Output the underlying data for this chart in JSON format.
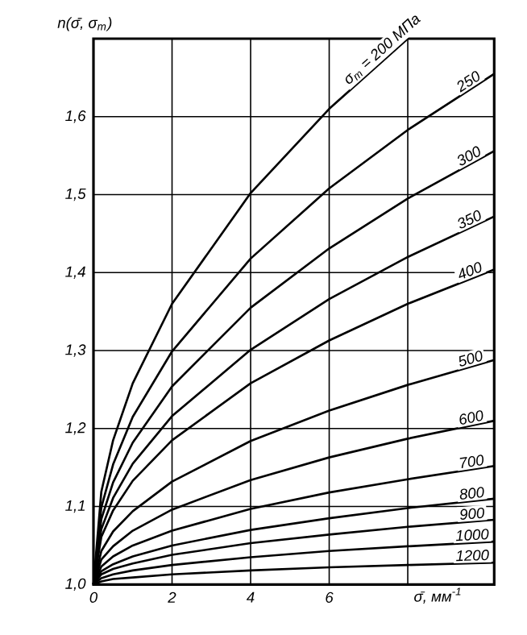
{
  "chart_data": {
    "type": "line",
    "xlabel": "σ̄, мм$^{-1}$",
    "ylabel": "n(σ̄, σ$_{т}$)",
    "x": [
      0,
      0.2,
      0.5,
      1,
      2,
      4,
      6,
      8,
      10.2
    ],
    "series": [
      {
        "name": "σ$_{т}$ = 200 МПа",
        "color": "#000000",
        "values": [
          1,
          1.119,
          1.185,
          1.258,
          1.36,
          1.502,
          1.61,
          1.7,
          null
        ]
      },
      {
        "name": "250",
        "color": "#000000",
        "values": [
          1,
          1.099,
          1.154,
          1.215,
          1.299,
          1.418,
          1.508,
          1.583,
          1.655
        ]
      },
      {
        "name": "300",
        "color": "#000000",
        "values": [
          1,
          1.084,
          1.131,
          1.182,
          1.254,
          1.355,
          1.431,
          1.495,
          1.556
        ]
      },
      {
        "name": "350",
        "color": "#000000",
        "values": [
          1,
          1.071,
          1.111,
          1.155,
          1.216,
          1.301,
          1.366,
          1.42,
          1.472
        ]
      },
      {
        "name": "400",
        "color": "#000000",
        "values": [
          1,
          1.061,
          1.095,
          1.133,
          1.185,
          1.258,
          1.313,
          1.36,
          1.404
        ]
      },
      {
        "name": "500",
        "color": "#000000",
        "values": [
          1,
          1.043,
          1.068,
          1.094,
          1.132,
          1.184,
          1.223,
          1.256,
          1.288
        ]
      },
      {
        "name": "600",
        "color": "#000000",
        "values": [
          1,
          1.032,
          1.049,
          1.069,
          1.096,
          1.134,
          1.163,
          1.187,
          1.21
        ]
      },
      {
        "name": "700",
        "color": "#000000",
        "values": [
          1,
          1.023,
          1.036,
          1.05,
          1.069,
          1.097,
          1.118,
          1.135,
          1.152
        ]
      },
      {
        "name": "800",
        "color": "#000000",
        "values": [
          1,
          1.017,
          1.026,
          1.036,
          1.05,
          1.07,
          1.085,
          1.098,
          1.11
        ]
      },
      {
        "name": "900",
        "color": "#000000",
        "values": [
          1,
          1.013,
          1.02,
          1.027,
          1.038,
          1.053,
          1.064,
          1.074,
          1.083
        ]
      },
      {
        "name": "1000",
        "color": "#000000",
        "values": [
          1,
          1.008,
          1.013,
          1.018,
          1.025,
          1.035,
          1.043,
          1.049,
          1.055
        ]
      },
      {
        "name": "1200",
        "color": "#000000",
        "values": [
          1,
          1.004,
          1.007,
          1.009,
          1.013,
          1.018,
          1.022,
          1.025,
          1.028
        ]
      }
    ],
    "xlim": [
      0,
      10.2
    ],
    "ylim": [
      1.0,
      1.7
    ],
    "xticks": [
      0,
      2,
      4,
      6,
      {
        "value": 8,
        "label": null
      }
    ],
    "yticks": [
      {
        "value": 1.0,
        "label": "1,0"
      },
      {
        "value": 1.1,
        "label": "1,1"
      },
      {
        "value": 1.2,
        "label": "1,2"
      },
      {
        "value": 1.3,
        "label": "1,3"
      },
      {
        "value": 1.4,
        "label": "1,4"
      },
      {
        "value": 1.5,
        "label": "1,5"
      },
      {
        "value": 1.6,
        "label": "1,6"
      },
      {
        "value": 1.7,
        "label": null
      }
    ],
    "grid": true,
    "marker": "none",
    "line_style": "solid"
  }
}
